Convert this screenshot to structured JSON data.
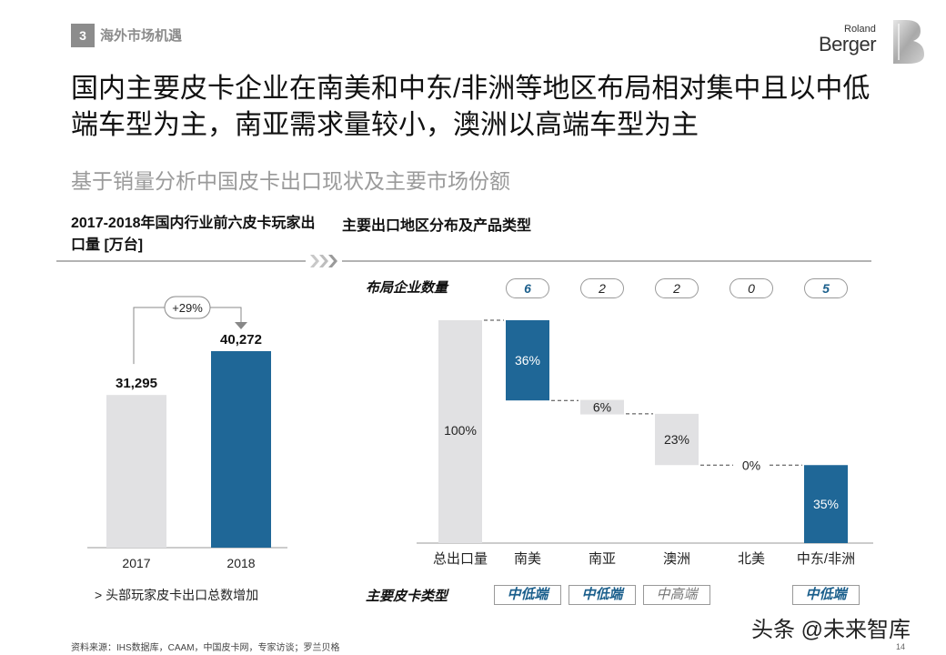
{
  "header": {
    "section_number": "3",
    "section_title": "海外市场机遇",
    "logo_small": "Roland",
    "logo_main": "Berger"
  },
  "title": "国内主要皮卡企业在南美和中东/非洲等地区布局相对集中且以中低端车型为主，南亚需求量较小，澳洲以高端车型为主",
  "subtitle": "基于销量分析中国皮卡出口现状及主要市场份额",
  "left_panel": {
    "header": "2017-2018年国内行业前六皮卡玩家出口量 [万台]",
    "note": "> 头部玩家皮卡出口总数增加"
  },
  "right_panel": {
    "header": "主要出口地区分布及产品类型",
    "companies_label": "布局企业数量",
    "types_label": "主要皮卡类型"
  },
  "chart_data": [
    {
      "type": "bar",
      "categories": [
        "2017",
        "2018"
      ],
      "values": [
        31295,
        40272
      ],
      "value_labels": [
        "31,295",
        "40,272"
      ],
      "colors": [
        "#e1e1e3",
        "#1f6797"
      ],
      "growth_label": "+29%"
    },
    {
      "type": "bar",
      "subtype": "waterfall",
      "categories": [
        "总出口量",
        "南美",
        "南亚",
        "澳洲",
        "北美",
        "中东/非洲"
      ],
      "values": [
        100,
        36,
        6,
        23,
        0,
        35
      ],
      "value_labels": [
        "100%",
        "36%",
        "6%",
        "23%",
        "0%",
        "35%"
      ],
      "colors": [
        "#e1e1e3",
        "#1f6797",
        "#e1e1e3",
        "#e1e1e3",
        "#e1e1e3",
        "#1f6797"
      ],
      "company_counts": [
        "",
        "6",
        "2",
        "2",
        "0",
        "5"
      ],
      "company_highlight": [
        false,
        true,
        false,
        false,
        false,
        true
      ],
      "product_types": [
        "",
        "中低端",
        "中低端",
        "中高端",
        "",
        "中低端"
      ],
      "product_type_highlight": [
        false,
        true,
        true,
        false,
        false,
        true
      ]
    }
  ],
  "footer": {
    "source": "资料来源：IHS数据库，CAAM，中国皮卡网，专家访谈；罗兰贝格",
    "watermark": "头条 @未来智库",
    "page": "14"
  }
}
